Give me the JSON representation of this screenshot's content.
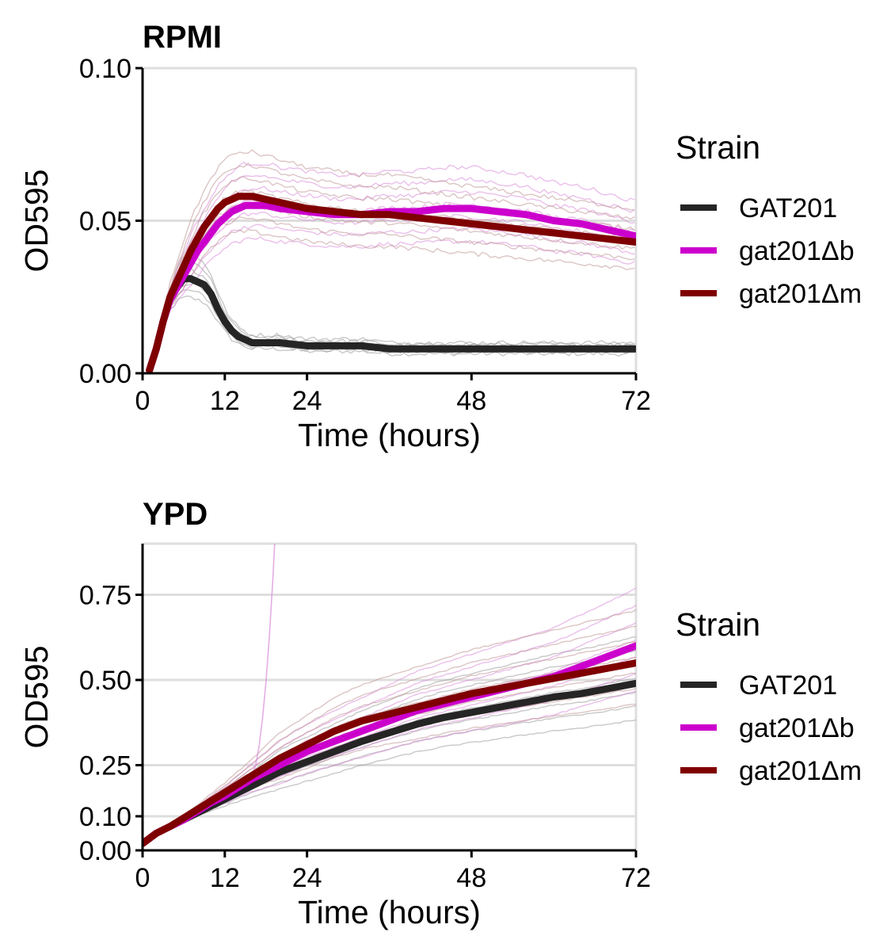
{
  "chart_data": [
    {
      "type": "line",
      "title": "RPMI",
      "xlabel": "Time (hours)",
      "ylabel": "OD595",
      "xlim": [
        0,
        72
      ],
      "ylim": [
        0,
        0.1
      ],
      "x_ticks": [
        0,
        12,
        24,
        48,
        72
      ],
      "x_tick_labels": [
        "0",
        "12",
        "24",
        "48",
        "72"
      ],
      "y_ticks": [
        0,
        0.05,
        0.1
      ],
      "y_tick_labels": [
        "0.00",
        "0.05",
        "0.10"
      ],
      "grid": "horizontal",
      "legend": {
        "title": "Strain",
        "position": "right",
        "entries": [
          "GAT201",
          "gat201Δb",
          "gat201Δm"
        ]
      },
      "series": [
        {
          "name": "GAT201",
          "color": "#252525",
          "replicate_color": "#9a9a9a",
          "x": [
            1,
            2,
            3,
            4,
            5,
            6,
            7,
            8,
            9,
            10,
            11,
            12,
            13,
            14,
            15,
            16,
            18,
            20,
            24,
            28,
            32,
            36,
            40,
            44,
            48,
            52,
            56,
            60,
            64,
            68,
            72
          ],
          "values": [
            0.001,
            0.008,
            0.017,
            0.024,
            0.028,
            0.031,
            0.031,
            0.03,
            0.029,
            0.026,
            0.021,
            0.017,
            0.014,
            0.012,
            0.011,
            0.01,
            0.01,
            0.01,
            0.009,
            0.009,
            0.009,
            0.008,
            0.008,
            0.008,
            0.008,
            0.008,
            0.008,
            0.008,
            0.008,
            0.008,
            0.008
          ]
        },
        {
          "name": "gat201Δb",
          "color": "#cc00cc",
          "replicate_color": "#d98ad9",
          "x": [
            1,
            2,
            3,
            4,
            5,
            6,
            7,
            8,
            9,
            10,
            11,
            12,
            13,
            14,
            15,
            16,
            18,
            20,
            24,
            28,
            32,
            36,
            40,
            44,
            48,
            52,
            56,
            60,
            64,
            68,
            72
          ],
          "values": [
            0.001,
            0.008,
            0.017,
            0.024,
            0.028,
            0.032,
            0.036,
            0.04,
            0.043,
            0.046,
            0.049,
            0.051,
            0.053,
            0.054,
            0.055,
            0.055,
            0.055,
            0.054,
            0.053,
            0.052,
            0.052,
            0.053,
            0.053,
            0.054,
            0.054,
            0.053,
            0.052,
            0.05,
            0.049,
            0.047,
            0.045
          ]
        },
        {
          "name": "gat201Δm",
          "color": "#7f0000",
          "replicate_color": "#c09696",
          "x": [
            1,
            2,
            3,
            4,
            5,
            6,
            7,
            8,
            9,
            10,
            11,
            12,
            13,
            14,
            15,
            16,
            18,
            20,
            24,
            28,
            32,
            36,
            40,
            44,
            48,
            52,
            56,
            60,
            64,
            68,
            72
          ],
          "values": [
            0.001,
            0.008,
            0.017,
            0.025,
            0.03,
            0.035,
            0.04,
            0.044,
            0.048,
            0.051,
            0.054,
            0.056,
            0.057,
            0.058,
            0.058,
            0.058,
            0.057,
            0.056,
            0.054,
            0.053,
            0.052,
            0.052,
            0.051,
            0.05,
            0.049,
            0.048,
            0.047,
            0.046,
            0.045,
            0.044,
            0.043
          ]
        }
      ]
    },
    {
      "type": "line",
      "title": "YPD",
      "xlabel": "Time (hours)",
      "ylabel": "OD595",
      "xlim": [
        0,
        72
      ],
      "ylim": [
        0,
        0.9
      ],
      "x_ticks": [
        0,
        12,
        24,
        48,
        72
      ],
      "x_tick_labels": [
        "0",
        "12",
        "24",
        "48",
        "72"
      ],
      "y_ticks": [
        0,
        0.1,
        0.25,
        0.5,
        0.75
      ],
      "y_tick_labels": [
        "0.00",
        "0.10",
        "0.25",
        "0.50",
        "0.75"
      ],
      "grid": "horizontal",
      "legend": {
        "title": "Strain",
        "position": "right",
        "entries": [
          "GAT201",
          "gat201Δb",
          "gat201Δm"
        ]
      },
      "series": [
        {
          "name": "GAT201",
          "color": "#252525",
          "replicate_color": "#9a9a9a",
          "x": [
            0,
            2,
            4,
            6,
            8,
            10,
            12,
            16,
            20,
            24,
            28,
            32,
            36,
            40,
            44,
            48,
            52,
            56,
            60,
            64,
            68,
            72
          ],
          "values": [
            0.02,
            0.05,
            0.07,
            0.09,
            0.11,
            0.13,
            0.15,
            0.19,
            0.23,
            0.26,
            0.29,
            0.32,
            0.345,
            0.37,
            0.39,
            0.405,
            0.42,
            0.435,
            0.45,
            0.46,
            0.475,
            0.49
          ]
        },
        {
          "name": "gat201Δb",
          "color": "#cc00cc",
          "replicate_color": "#d98ad9",
          "x": [
            0,
            2,
            4,
            6,
            8,
            10,
            12,
            16,
            20,
            24,
            28,
            32,
            36,
            40,
            44,
            48,
            52,
            56,
            60,
            64,
            68,
            72
          ],
          "values": [
            0.02,
            0.05,
            0.07,
            0.09,
            0.115,
            0.14,
            0.16,
            0.21,
            0.25,
            0.29,
            0.32,
            0.35,
            0.38,
            0.41,
            0.43,
            0.45,
            0.47,
            0.49,
            0.51,
            0.54,
            0.57,
            0.6
          ]
        },
        {
          "name": "gat201Δm",
          "color": "#7f0000",
          "replicate_color": "#c09696",
          "x": [
            0,
            2,
            4,
            6,
            8,
            10,
            12,
            16,
            20,
            24,
            28,
            32,
            36,
            40,
            44,
            48,
            52,
            56,
            60,
            64,
            68,
            72
          ],
          "values": [
            0.02,
            0.05,
            0.07,
            0.095,
            0.12,
            0.145,
            0.17,
            0.22,
            0.27,
            0.31,
            0.35,
            0.38,
            0.4,
            0.42,
            0.44,
            0.46,
            0.475,
            0.49,
            0.505,
            0.52,
            0.535,
            0.55
          ]
        }
      ]
    }
  ]
}
